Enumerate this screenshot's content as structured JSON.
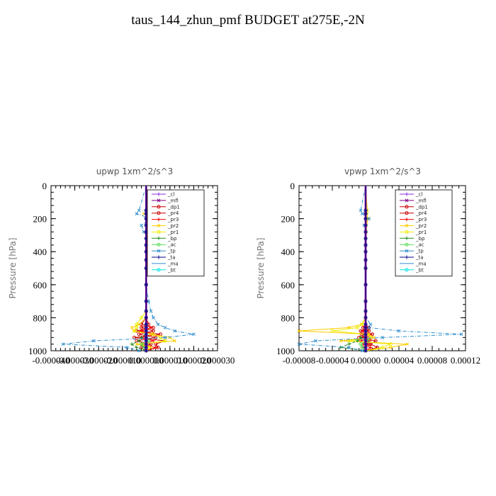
{
  "title": "taus_144_zhun_pmf  BUDGET at275E,-2N",
  "chart_data": [
    {
      "type": "line",
      "title": "upwp   1xm^2/s^3",
      "ylabel": "Pressure [hPa]",
      "xlim": [
        -4e-05,
        3e-05
      ],
      "ylim": [
        1000,
        0
      ],
      "y_reversed": true,
      "xticks": [
        -4e-05,
        -3e-05,
        -2e-05,
        -1e-05,
        0,
        1e-05,
        2e-05,
        3e-05
      ],
      "xtick_labels": [
        "-0.000040",
        "-0.000030",
        "-0.000020",
        "-0.000010",
        "0.000000",
        "0.000010",
        "0.000020",
        "0.000030"
      ],
      "yticks": [
        0,
        200,
        400,
        600,
        800,
        1000
      ],
      "legend_position": "upper-right",
      "y": [
        150,
        170,
        200,
        240,
        280,
        320,
        360,
        400,
        450,
        500,
        600,
        700,
        760,
        800,
        840,
        860,
        880,
        900,
        920,
        940,
        960,
        980,
        1000
      ],
      "series": [
        {
          "name": "_cl",
          "color": "#8a2be2",
          "marker": "+",
          "values": [
            0,
            0,
            0,
            0,
            0,
            0,
            0,
            0,
            0,
            0,
            0,
            0,
            0,
            0,
            0,
            0,
            0,
            0,
            0,
            0,
            0,
            0,
            0
          ]
        },
        {
          "name": "_mfl",
          "color": "#800080",
          "marker": "x",
          "values": [
            0,
            0,
            0,
            0,
            0,
            0,
            0,
            0,
            0,
            0,
            0,
            0,
            0,
            0,
            0,
            0,
            0,
            0,
            0,
            0,
            0,
            0,
            0
          ]
        },
        {
          "name": "_dp1",
          "color": "#cc0000",
          "marker": "o",
          "values": [
            0,
            0,
            0,
            0,
            0,
            0,
            0,
            0,
            0,
            0,
            0,
            0,
            0,
            0,
            -2e-06,
            3e-06,
            -4e-06,
            6e-06,
            -5e-06,
            8e-06,
            4e-06,
            5e-06,
            0
          ]
        },
        {
          "name": "_pr4",
          "color": "#cc0000",
          "marker": "o",
          "values": [
            0,
            0,
            0,
            0,
            0,
            0,
            0,
            0,
            0,
            0,
            0,
            0,
            0,
            0,
            1e-06,
            -2e-06,
            3e-06,
            -3e-06,
            4e-06,
            -4e-06,
            2e-06,
            -2e-06,
            0
          ]
        },
        {
          "name": "_pr3",
          "color": "#ff0000",
          "marker": "+",
          "values": [
            0,
            0,
            0,
            0,
            0,
            0,
            0,
            0,
            0,
            0,
            0,
            0,
            0,
            0,
            0,
            2e-06,
            -2e-06,
            3e-06,
            -2e-06,
            3e-06,
            -2e-06,
            4e-06,
            0
          ]
        },
        {
          "name": "_pr2",
          "color": "#ffcc00",
          "marker": "x",
          "values": [
            2e-06,
            -1e-06,
            3e-06,
            1e-06,
            2e-06,
            1e-06,
            2e-06,
            1e-06,
            1e-06,
            0,
            0,
            0,
            0,
            0,
            -3e-06,
            -6e-06,
            -5e-06,
            2e-06,
            1e-05,
            1.2e-05,
            -4e-06,
            2e-06,
            0
          ]
        },
        {
          "name": "_pr1",
          "color": "#eeee00",
          "marker": "o",
          "values": [
            1e-06,
            1e-06,
            2e-06,
            1e-06,
            1e-06,
            0,
            1e-06,
            0,
            0,
            0,
            0,
            0,
            0,
            -2e-06,
            -4e-06,
            -4e-06,
            -5e-06,
            3e-06,
            6e-06,
            8e-06,
            -2e-06,
            1e-06,
            0
          ]
        },
        {
          "name": "_bp",
          "color": "#228b22",
          "marker": "+",
          "values": [
            0,
            0,
            0,
            0,
            0,
            0,
            0,
            0,
            0,
            0,
            0,
            0,
            0,
            0,
            0,
            0,
            0,
            0,
            -2e-06,
            -3e-06,
            -6e-06,
            -4e-06,
            0
          ]
        },
        {
          "name": "_ac",
          "color": "#55dd55",
          "marker": "o",
          "values": [
            0,
            0,
            0,
            0,
            0,
            0,
            0,
            0,
            0,
            0,
            0,
            0,
            0,
            0,
            0,
            0,
            0,
            0,
            0,
            1e-06,
            -2e-06,
            -1e-06,
            0
          ]
        },
        {
          "name": "_tp",
          "color": "#2b8ccb",
          "marker": "x",
          "values": [
            -3e-06,
            -4e-06,
            2e-06,
            -2e-06,
            -1e-06,
            1e-06,
            0,
            0,
            0,
            0,
            0,
            1e-06,
            2e-06,
            3e-06,
            5e-06,
            8e-06,
            1.2e-05,
            2e-05,
            8e-06,
            -2.2e-05,
            -3.5e-05,
            -8e-06,
            -3e-06
          ]
        },
        {
          "name": "_ta",
          "color": "#00008b",
          "marker": "+",
          "values": [
            0,
            0,
            0,
            0,
            0,
            0,
            0,
            0,
            0,
            0,
            0,
            0,
            0,
            0,
            0,
            0,
            0,
            0,
            0,
            0,
            0,
            0,
            0
          ]
        },
        {
          "name": "_ma",
          "color": "#2b8ccb",
          "marker": "",
          "values": [
            0,
            0,
            0,
            0,
            0,
            0,
            0,
            0,
            0,
            0,
            0,
            0,
            0,
            0,
            0,
            0,
            0,
            0,
            0,
            0,
            0,
            0,
            0
          ]
        },
        {
          "name": "_bt",
          "color": "#00e5e5",
          "marker": "o",
          "values": [
            0,
            0,
            0,
            0,
            0,
            0,
            0,
            0,
            0,
            0,
            0,
            0,
            0,
            0,
            0,
            0,
            0,
            0,
            0,
            0,
            0,
            0,
            0
          ]
        }
      ]
    },
    {
      "type": "line",
      "title": "vpwp   1xm^2/s^3",
      "ylabel": "Pressure [hPa]",
      "xlim": [
        -8e-05,
        0.00012
      ],
      "ylim": [
        1000,
        0
      ],
      "y_reversed": true,
      "xticks": [
        -8e-05,
        -4e-05,
        0,
        4e-05,
        8e-05,
        0.00012
      ],
      "xtick_labels": [
        "-0.00008",
        "-0.00004",
        "0.00000",
        "0.00004",
        "0.00008",
        "0.00012"
      ],
      "yticks": [
        0,
        200,
        400,
        600,
        800,
        1000
      ],
      "legend_position": "upper-right",
      "y": [
        150,
        170,
        200,
        240,
        280,
        320,
        360,
        400,
        450,
        500,
        600,
        700,
        760,
        800,
        840,
        860,
        880,
        900,
        920,
        940,
        960,
        980,
        1000
      ],
      "series": [
        {
          "name": "_cl",
          "color": "#8a2be2",
          "marker": "+",
          "values": [
            0,
            0,
            0,
            0,
            0,
            0,
            0,
            0,
            0,
            0,
            0,
            0,
            0,
            0,
            0,
            0,
            0,
            0,
            0,
            0,
            0,
            0,
            0
          ]
        },
        {
          "name": "_mfl",
          "color": "#800080",
          "marker": "x",
          "values": [
            0,
            0,
            0,
            0,
            0,
            0,
            0,
            0,
            0,
            0,
            0,
            0,
            0,
            0,
            0,
            0,
            0,
            0,
            0,
            0,
            0,
            0,
            0
          ]
        },
        {
          "name": "_dp1",
          "color": "#cc0000",
          "marker": "o",
          "values": [
            0,
            0,
            0,
            0,
            0,
            0,
            0,
            0,
            0,
            0,
            0,
            0,
            0,
            0,
            0,
            4e-06,
            -6e-06,
            8e-06,
            -8e-06,
            1.2e-05,
            6e-06,
            1.4e-05,
            0
          ]
        },
        {
          "name": "_pr4",
          "color": "#cc0000",
          "marker": "o",
          "values": [
            0,
            0,
            0,
            0,
            0,
            0,
            0,
            0,
            0,
            0,
            0,
            0,
            0,
            0,
            0,
            -3e-06,
            4e-06,
            -5e-06,
            6e-06,
            -6e-06,
            4e-06,
            -4e-06,
            0
          ]
        },
        {
          "name": "_pr3",
          "color": "#ff0000",
          "marker": "+",
          "values": [
            0,
            0,
            0,
            0,
            0,
            0,
            0,
            0,
            0,
            0,
            0,
            0,
            0,
            0,
            0,
            2e-06,
            -3e-06,
            4e-06,
            -4e-06,
            5e-06,
            -3e-06,
            6e-06,
            0
          ]
        },
        {
          "name": "_pr2",
          "color": "#ffcc00",
          "marker": "x",
          "values": [
            2e-06,
            1e-06,
            3e-06,
            1e-06,
            1e-06,
            0,
            0,
            0,
            0,
            0,
            0,
            0,
            0,
            0,
            -5e-06,
            -2e-05,
            -8e-05,
            4e-06,
            1e-05,
            -3e-05,
            5e-05,
            3e-05,
            0
          ]
        },
        {
          "name": "_pr1",
          "color": "#eeee00",
          "marker": "o",
          "values": [
            1e-06,
            1e-06,
            2e-06,
            0,
            0,
            0,
            0,
            0,
            0,
            0,
            0,
            0,
            0,
            0,
            -4e-06,
            -1e-05,
            -4e-05,
            2e-06,
            6e-06,
            -2e-05,
            3e-05,
            2e-05,
            0
          ]
        },
        {
          "name": "_bp",
          "color": "#228b22",
          "marker": "+",
          "values": [
            0,
            0,
            0,
            0,
            0,
            0,
            0,
            0,
            0,
            0,
            0,
            0,
            0,
            0,
            0,
            0,
            0,
            0,
            -6e-06,
            -1e-05,
            -2e-05,
            -3e-05,
            0
          ]
        },
        {
          "name": "_ac",
          "color": "#55dd55",
          "marker": "o",
          "values": [
            0,
            0,
            0,
            0,
            0,
            0,
            0,
            0,
            0,
            0,
            0,
            0,
            0,
            0,
            0,
            0,
            0,
            0,
            0,
            3e-06,
            -6e-06,
            -4e-06,
            0
          ]
        },
        {
          "name": "_tp",
          "color": "#2b8ccb",
          "marker": "x",
          "values": [
            -6e-06,
            -4e-06,
            4e-06,
            -2e-06,
            0,
            0,
            0,
            0,
            0,
            0,
            0,
            0,
            0,
            0,
            6e-06,
            4e-06,
            4e-05,
            0.000115,
            2e-05,
            -6e-05,
            -8e-05,
            -2e-05,
            -4e-06
          ]
        },
        {
          "name": "_ta",
          "color": "#00008b",
          "marker": "+",
          "values": [
            0,
            0,
            0,
            0,
            0,
            0,
            0,
            0,
            0,
            0,
            0,
            0,
            0,
            0,
            0,
            0,
            0,
            0,
            0,
            0,
            0,
            0,
            0
          ]
        },
        {
          "name": "_ma",
          "color": "#2b8ccb",
          "marker": "",
          "values": [
            0,
            0,
            0,
            0,
            0,
            0,
            0,
            0,
            0,
            0,
            0,
            0,
            0,
            0,
            0,
            0,
            0,
            0,
            0,
            0,
            0,
            0,
            0
          ]
        },
        {
          "name": "_bt",
          "color": "#00e5e5",
          "marker": "o",
          "values": [
            0,
            0,
            0,
            0,
            0,
            0,
            0,
            0,
            0,
            0,
            0,
            0,
            0,
            0,
            0,
            0,
            0,
            0,
            0,
            0,
            0,
            0,
            0
          ]
        }
      ]
    }
  ]
}
